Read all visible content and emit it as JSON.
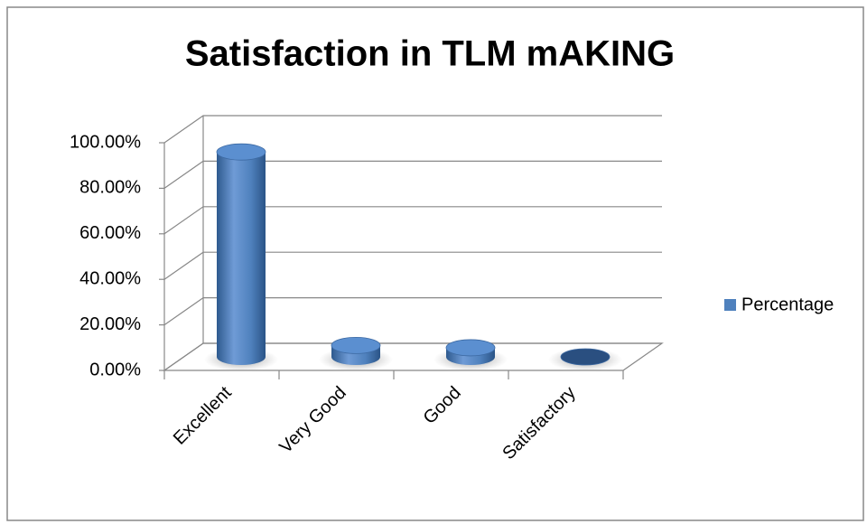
{
  "chart_data": {
    "type": "bar3d",
    "title": "Satisfaction in TLM mAKING",
    "categories": [
      "Excellent",
      "Very Good",
      "Good",
      "Satisfactory"
    ],
    "series": [
      {
        "name": "Percentage",
        "color": "#4f81bd",
        "values": [
          90,
          5,
          4,
          0
        ]
      }
    ],
    "ylim": [
      0,
      100
    ],
    "yticks": [
      {
        "value": 0,
        "label": "0.00%"
      },
      {
        "value": 20,
        "label": "20.00%"
      },
      {
        "value": 40,
        "label": "40.00%"
      },
      {
        "value": 60,
        "label": "60.00%"
      },
      {
        "value": 80,
        "label": "80.00%"
      },
      {
        "value": 100,
        "label": "100.00%"
      }
    ],
    "grid": true,
    "legend": "right"
  }
}
